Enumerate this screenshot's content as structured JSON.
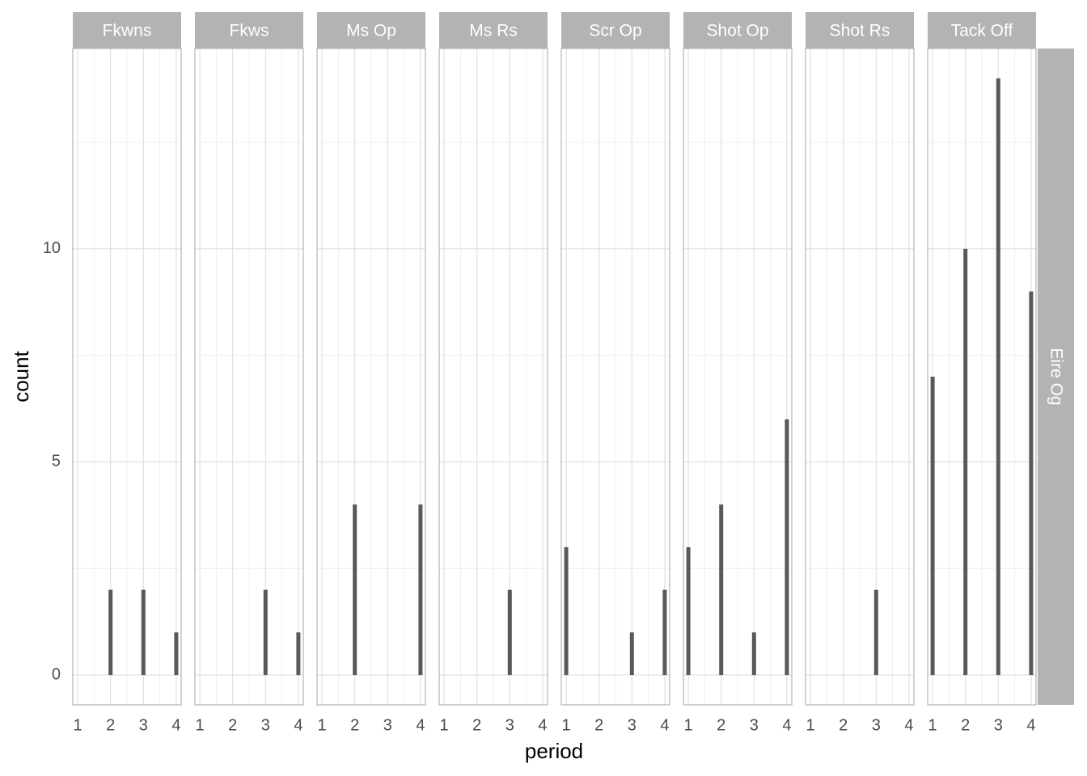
{
  "chart_data": {
    "type": "bar",
    "x_label": "period",
    "y_label": "count",
    "row_label": "Eire Og",
    "x": [
      1,
      2,
      3,
      4
    ],
    "xlim": [
      0.85,
      4.15
    ],
    "xticks": [
      1,
      2,
      3,
      4
    ],
    "minor_xticks": [
      1.5,
      2.5,
      3.5
    ],
    "ylim": [
      -0.7,
      14.7
    ],
    "yticks": [
      0,
      5,
      10
    ],
    "minor_yticks": [
      2.5,
      7.5,
      12.5
    ],
    "grid": true,
    "color": "#595959",
    "panels": [
      {
        "title": "Fkwns",
        "values": [
          null,
          2,
          2,
          1
        ]
      },
      {
        "title": "Fkws",
        "values": [
          null,
          null,
          2,
          1
        ]
      },
      {
        "title": "Ms Op",
        "values": [
          null,
          4,
          null,
          4
        ]
      },
      {
        "title": "Ms Rs",
        "values": [
          null,
          null,
          2,
          null
        ]
      },
      {
        "title": "Scr Op",
        "values": [
          3,
          null,
          1,
          2
        ]
      },
      {
        "title": "Shot Op",
        "values": [
          3,
          4,
          1,
          6
        ]
      },
      {
        "title": "Shot Rs",
        "values": [
          null,
          null,
          2,
          null
        ]
      },
      {
        "title": "Tack Off",
        "values": [
          7,
          10,
          14,
          9
        ]
      }
    ]
  }
}
